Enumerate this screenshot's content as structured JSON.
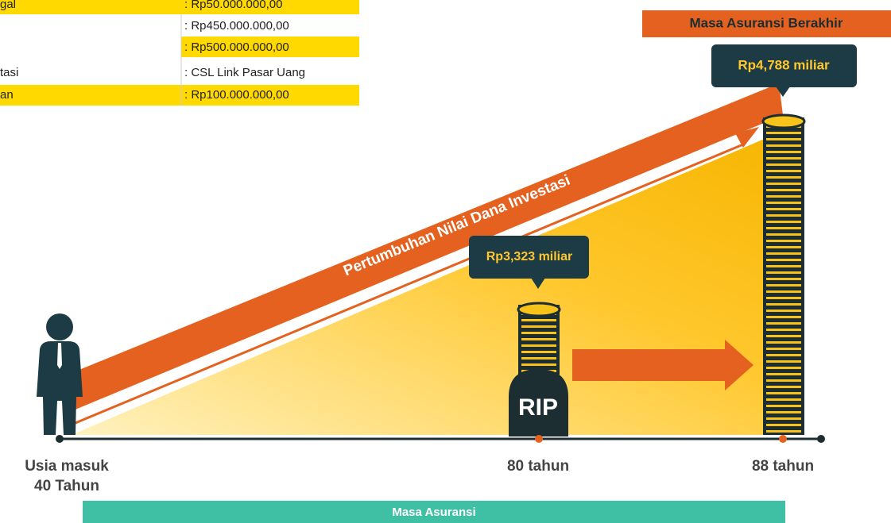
{
  "table": {
    "rows": [
      {
        "label": "gal",
        "value": ": Rp50.000.000,00"
      },
      {
        "value": ": Rp450.000.000,00"
      },
      {
        "value": ": Rp500.000.000,00"
      },
      {
        "label": "tasi",
        "value": ": CSL Link Pasar Uang"
      },
      {
        "label": "an",
        "value": ": Rp100.000.000,00"
      }
    ]
  },
  "end_banner": "Masa Asuransi Berakhir",
  "final_value": "Rp4,788 miliar",
  "growth_label": "Pertumbuhan Nilai Dana Investasi",
  "death_value": "Rp3,323 miliar",
  "tombstone": "RIP",
  "timeline": {
    "start_line1": "Usia masuk",
    "start_line2": "40 Tahun",
    "mid": "80 tahun",
    "end": "88 tahun"
  },
  "period_bar": "Masa Asuransi"
}
